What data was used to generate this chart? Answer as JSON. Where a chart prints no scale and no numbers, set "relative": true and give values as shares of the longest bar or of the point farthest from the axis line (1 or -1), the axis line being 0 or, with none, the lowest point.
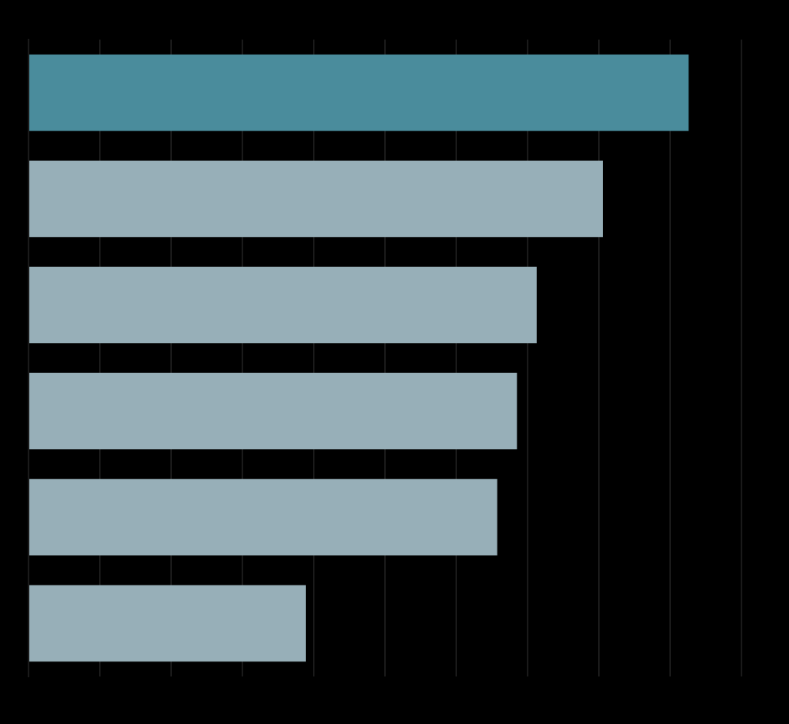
{
  "chart_data": {
    "type": "bar",
    "orientation": "horizontal",
    "relative": true,
    "grid": "x",
    "categories": [
      null,
      null,
      null,
      null,
      null,
      null
    ],
    "values": [
      1,
      0.87,
      0.77,
      0.74,
      0.71,
      0.42
    ],
    "colors": [
      "#4a8c9c",
      "#97afb8",
      "#97afb8",
      "#97afb8",
      "#97afb8",
      "#97afb8"
    ]
  }
}
